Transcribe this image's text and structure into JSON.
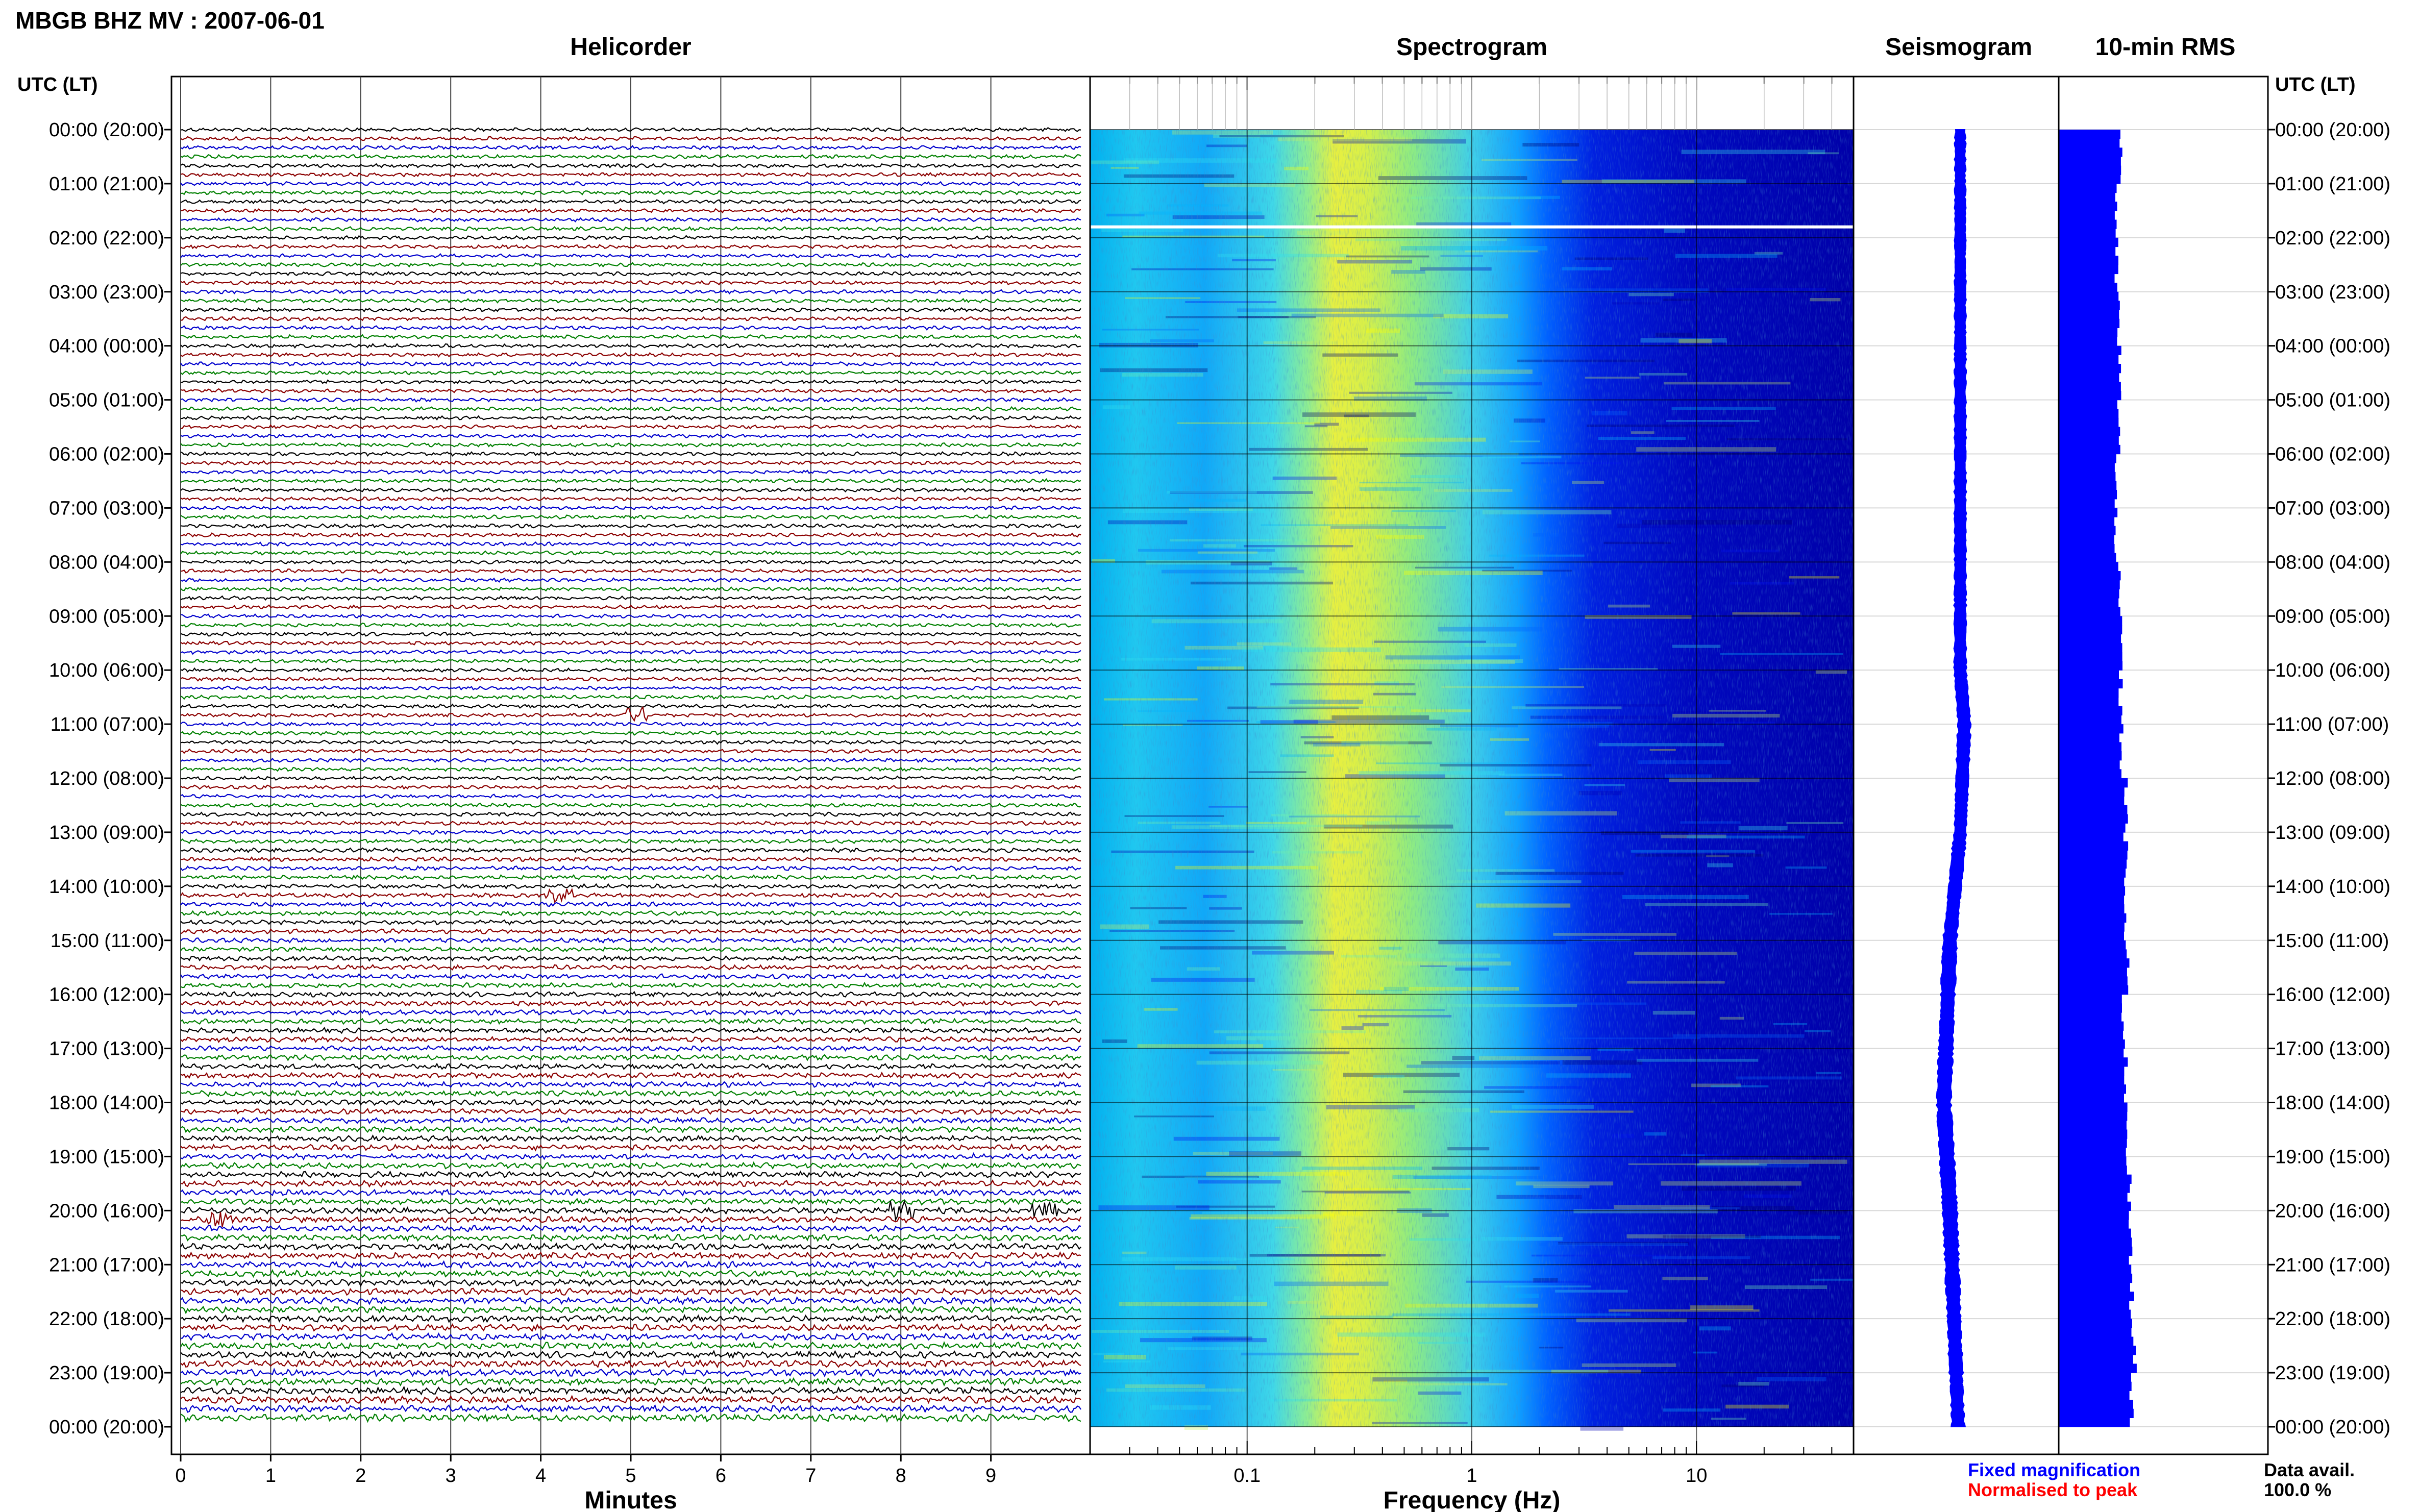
{
  "chart_data": {
    "type": "heatmap",
    "title": "MBGB BHZ MV : 2007-06-01",
    "time_axis": {
      "header": "UTC (LT)",
      "labels": [
        "00:00 (20:00)",
        "01:00 (21:00)",
        "02:00 (22:00)",
        "03:00 (23:00)",
        "04:00 (00:00)",
        "05:00 (01:00)",
        "06:00 (02:00)",
        "07:00 (03:00)",
        "08:00 (04:00)",
        "09:00 (05:00)",
        "10:00 (06:00)",
        "11:00 (07:00)",
        "12:00 (08:00)",
        "13:00 (09:00)",
        "14:00 (10:00)",
        "15:00 (11:00)",
        "16:00 (12:00)",
        "17:00 (13:00)",
        "18:00 (14:00)",
        "19:00 (15:00)",
        "20:00 (16:00)",
        "21:00 (17:00)",
        "22:00 (18:00)",
        "23:00 (19:00)",
        "00:00 (20:00)"
      ]
    },
    "helicorder": {
      "title": "Helicorder",
      "xlabel": "Minutes",
      "xticks": [
        0,
        1,
        2,
        3,
        4,
        5,
        6,
        7,
        8,
        9
      ],
      "xlim": [
        0,
        10
      ],
      "lines_per_hour": 6,
      "trace_colors": [
        "#000000",
        "#8b0000",
        "#0000cd",
        "#008000"
      ],
      "events": [
        {
          "hour": 10.833,
          "minute": 5.05,
          "amplitude": 2.5
        },
        {
          "hour": 14.17,
          "minute": 4.2,
          "amplitude": 1.8
        },
        {
          "hour": 20.0,
          "minute": 8.0,
          "amplitude": 2.0
        },
        {
          "hour": 20.0,
          "minute": 9.6,
          "amplitude": 1.6
        },
        {
          "hour": 20.17,
          "minute": 0.45,
          "amplitude": 2.0
        }
      ]
    },
    "spectrogram": {
      "title": "Spectrogram",
      "xlabel": "Frequency (Hz)",
      "xscale": "log",
      "xlim": [
        0.02,
        50
      ],
      "xticks": [
        0.1,
        1,
        10
      ],
      "xtick_labels": [
        "0.1",
        "1",
        "10"
      ],
      "energy_peak_hz": 0.25,
      "data_gap_hour": 1.8
    },
    "seismogram": {
      "title": "Seismogram",
      "profile": [
        {
          "hour": 0,
          "center": 0.52,
          "half_width": 0.025
        },
        {
          "hour": 6,
          "center": 0.52,
          "half_width": 0.027
        },
        {
          "hour": 10,
          "center": 0.52,
          "half_width": 0.028
        },
        {
          "hour": 11,
          "center": 0.54,
          "half_width": 0.03
        },
        {
          "hour": 13,
          "center": 0.52,
          "half_width": 0.03
        },
        {
          "hour": 15,
          "center": 0.47,
          "half_width": 0.032
        },
        {
          "hour": 18,
          "center": 0.44,
          "half_width": 0.034
        },
        {
          "hour": 20,
          "center": 0.47,
          "half_width": 0.034
        },
        {
          "hour": 22,
          "center": 0.49,
          "half_width": 0.032
        },
        {
          "hour": 24,
          "center": 0.51,
          "half_width": 0.03
        }
      ]
    },
    "rms": {
      "title": "10-min RMS",
      "color": "#0000ff",
      "values_per_hour": [
        0.6,
        0.55,
        0.55,
        0.57,
        0.58,
        0.58,
        0.54,
        0.55,
        0.57,
        0.6,
        0.59,
        0.6,
        0.64,
        0.64,
        0.63,
        0.65,
        0.62,
        0.64,
        0.66,
        0.67,
        0.68,
        0.7,
        0.72,
        0.7
      ]
    },
    "legend": {
      "fixed": {
        "label": "Fixed magnification",
        "color": "#0000ff"
      },
      "normalised": {
        "label": "Normalised to peak",
        "color": "#ff0000"
      }
    },
    "availability": {
      "label": "Data avail.",
      "value": "100.0 %"
    },
    "colormap": [
      "#00006e",
      "#0000b4",
      "#0010f0",
      "#0060ff",
      "#00b4ff",
      "#30e0ee",
      "#70f0b0",
      "#c8f060",
      "#ffff00"
    ]
  }
}
